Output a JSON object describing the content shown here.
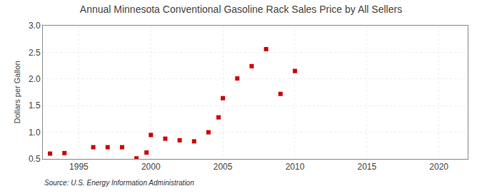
{
  "chart_data": {
    "type": "scatter",
    "title": "Annual Minnesota Conventional Gasoline Rack Sales Price by All Sellers",
    "ylabel": "Dollars per Gallon",
    "annotations": [
      "Source: U.S. Energy Information Administration"
    ],
    "x": [
      1993,
      1994,
      1996,
      1997,
      1998,
      1999,
      1999.7,
      2000,
      2001,
      2002,
      2003,
      2004,
      2004.7,
      2005,
      2006,
      2007,
      2008,
      2009,
      2010
    ],
    "values": [
      0.6,
      0.61,
      0.72,
      0.72,
      0.72,
      0.51,
      0.62,
      0.95,
      0.88,
      0.85,
      0.83,
      1.0,
      1.28,
      1.64,
      2.01,
      2.24,
      2.56,
      1.72,
      2.15
    ],
    "color": "#cc0000",
    "marker": "square",
    "xlim": [
      1992.5,
      2022
    ],
    "xticks": [
      1995,
      2000,
      2005,
      2010,
      2015,
      2020
    ],
    "ylim": [
      0.5,
      3.0
    ],
    "yticks": [
      0.5,
      {
        "value": 1,
        "label": "1.0"
      },
      1.5,
      {
        "value": 2,
        "label": "2.0"
      },
      2.5,
      {
        "value": 3,
        "label": "3.0"
      }
    ],
    "grid": true
  }
}
